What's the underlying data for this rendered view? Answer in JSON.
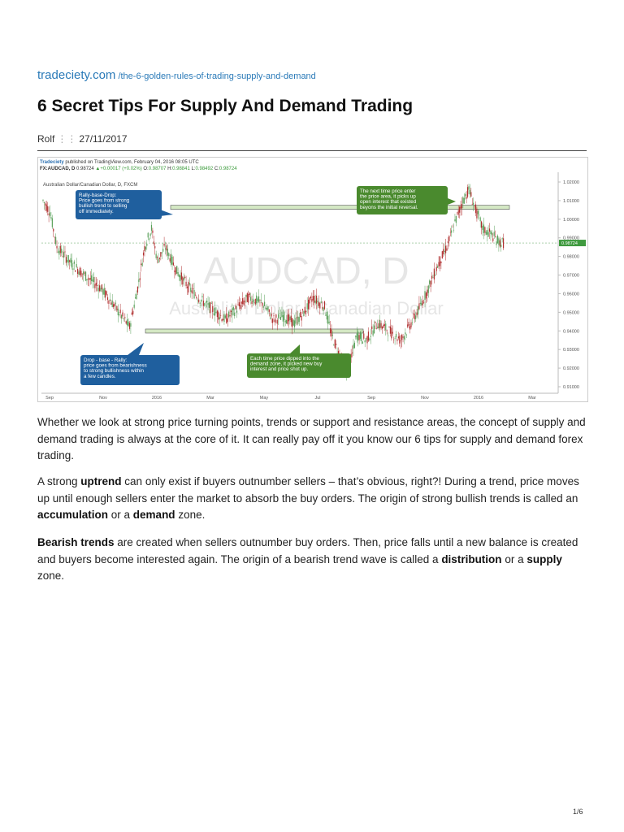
{
  "source": {
    "site": "tradeciety.com",
    "path": "/the-6-golden-rules-of-trading-supply-and-demand"
  },
  "title": "6 Secret Tips For Supply And Demand Trading",
  "meta": {
    "author": "Rolf",
    "separator": "⋮⋮",
    "date": "27/11/2017"
  },
  "chart": {
    "header_brand": "Tradeciety",
    "header_published": "published on TradingView.com, February 04, 2016 08:05 UTC",
    "header_symbol": "FX:AUDCAD, D",
    "header_price": "0.98724",
    "header_change": "+0.00017 (+0.02%)",
    "header_o_label": "O:",
    "header_o": "0.98707",
    "header_h_label": "H:",
    "header_h": "0.98841",
    "header_l_label": "L:",
    "header_l": "0.98492",
    "header_c_label": "C:",
    "header_c": "0.98724",
    "subtitle": "Australian Dollar/Canadian Dollar, D, FXCM",
    "watermark_symbol": "AUDCAD, D",
    "watermark_name": "Australian Dollar / Canadian Dollar",
    "current_price": "0.98724",
    "y_ticks": [
      "1.02000",
      "1.01000",
      "1.00000",
      "0.99000",
      "0.98000",
      "0.97000",
      "0.96000",
      "0.95000",
      "0.94000",
      "0.93000",
      "0.92000",
      "0.91000"
    ],
    "x_ticks": [
      "Sep",
      "Nov",
      "2016",
      "Mar",
      "May",
      "Jul",
      "Sep",
      "Nov",
      "2016",
      "Mar"
    ],
    "callouts": {
      "rbd": [
        "Rally-base-Drop:",
        "Price goes from strong",
        "bullish trend to selling",
        "off immediately."
      ],
      "next": [
        "The next time price enter",
        "the price area, it picks up",
        "open interest that existed",
        "beyons the initial reversal."
      ],
      "dbr": [
        "Drop - base - Rally:",
        "price goes from bearishness",
        "to strong bullishness within",
        "a few candles."
      ],
      "each": [
        "Each time price dipped into the",
        "demand zone, it picked new buy",
        "interest and price shot up."
      ]
    },
    "colors": {
      "blue_callout": "#1f5f9e",
      "green_callout": "#4a8a2e",
      "bull": "#5aa05a",
      "bear": "#b03030",
      "zone": "#d4e8c4"
    }
  },
  "paragraphs": {
    "p1": "Whether we look at strong price turning points, trends or support and resistance areas, the concept of supply and demand trading is always at the core of it. It can really pay off it you know our 6 tips for supply and demand forex trading.",
    "p2_a": "A strong ",
    "p2_b": "uptrend",
    "p2_c": " can only exist if buyers outnumber sellers – that’s obvious, right?! During a trend, price moves up until enough sellers enter the market to absorb the buy orders. The origin of strong bullish trends is called an ",
    "p2_d": "accumulation",
    "p2_e": " or a ",
    "p2_f": "demand",
    "p2_g": " zone.",
    "p3_a": "Bearish trends",
    "p3_b": " are created when sellers outnumber buy orders. Then, price falls until a new balance is created and buyers become interested again. The origin of a bearish trend wave is called a ",
    "p3_c": "distribution",
    "p3_d": " or a ",
    "p3_e": "supply",
    "p3_f": " zone."
  },
  "page_number": "1/6"
}
